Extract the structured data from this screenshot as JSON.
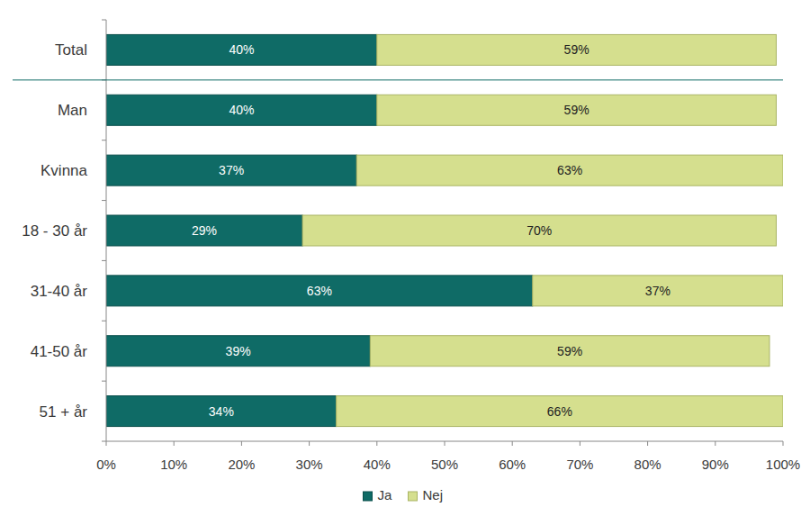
{
  "chart_data": {
    "type": "bar",
    "orientation": "horizontal",
    "stacked": true,
    "data_labels": true,
    "grid": false,
    "legend": "bottom",
    "categories": [
      "Total",
      "Man",
      "Kvinna",
      "18 - 30 år",
      "31-40 år",
      "41-50 år",
      "51 + år"
    ],
    "series": [
      {
        "name": "Ja",
        "color": "#0f6b66",
        "values": [
          40,
          40,
          37,
          29,
          63,
          39,
          34
        ],
        "value_labels": [
          "40%",
          "40%",
          "37%",
          "29%",
          "63%",
          "39%",
          "34%"
        ]
      },
      {
        "name": "Nej",
        "color": "#d5df8e",
        "values": [
          59,
          59,
          63,
          70,
          37,
          59,
          66
        ],
        "value_labels": [
          "59%",
          "59%",
          "63%",
          "70%",
          "37%",
          "59%",
          "66%"
        ]
      }
    ],
    "xlim": [
      0,
      100
    ],
    "xticks": [
      {
        "value": 0,
        "label": "0%"
      },
      {
        "value": 10,
        "label": "10%"
      },
      {
        "value": 20,
        "label": "20%"
      },
      {
        "value": 30,
        "label": "30%"
      },
      {
        "value": 40,
        "label": "40%"
      },
      {
        "value": 50,
        "label": "50%"
      },
      {
        "value": 60,
        "label": "60%"
      },
      {
        "value": 70,
        "label": "70%"
      },
      {
        "value": 80,
        "label": "80%"
      },
      {
        "value": 90,
        "label": "90%"
      },
      {
        "value": 100,
        "label": "100%"
      }
    ]
  }
}
